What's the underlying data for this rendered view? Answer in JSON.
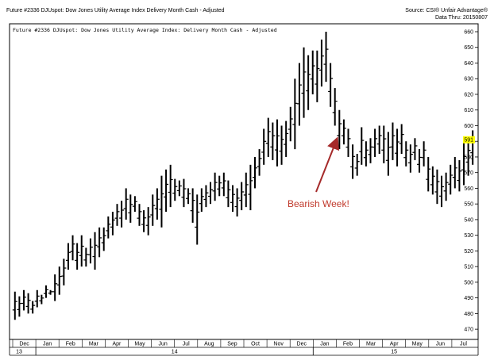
{
  "header": {
    "left_title": "Future #2336 DJUspot: Dow Jones Utility Average Index Delivery Month Cash - Adjusted",
    "source": "Source: CSI® Unfair Advantage®",
    "data_thru": "Data Thru: 20150807"
  },
  "chart_data": {
    "type": "ohlc",
    "title": "Future #2336 DJUspot: Dow Jones Utility Average Index: Delivery Month Cash - Adjusted",
    "ylim": [
      465,
      660
    ],
    "y_ticks": [
      470,
      480,
      490,
      500,
      510,
      520,
      530,
      540,
      550,
      560,
      570,
      580,
      590,
      600,
      610,
      620,
      630,
      640,
      650,
      660
    ],
    "last_price": 591,
    "last_price_color": "#ffff00",
    "months": [
      "Dec",
      "Jan",
      "Feb",
      "Mar",
      "Apr",
      "May",
      "Jun",
      "Jul",
      "Aug",
      "Sep",
      "Oct",
      "Nov",
      "Dec",
      "Jan",
      "Feb",
      "Mar",
      "Apr",
      "May",
      "Jun",
      "Jul"
    ],
    "years": [
      "13",
      "14",
      "15"
    ],
    "annotation": {
      "text": "Bearish Week!",
      "color": "#c0392b"
    },
    "bars": [
      [
        476,
        494
      ],
      [
        478,
        491
      ],
      [
        482,
        495
      ],
      [
        480,
        493
      ],
      [
        480,
        488
      ],
      [
        484,
        495
      ],
      [
        486,
        492
      ],
      [
        490,
        498
      ],
      [
        492,
        495
      ],
      [
        488,
        505
      ],
      [
        492,
        510
      ],
      [
        498,
        515
      ],
      [
        508,
        525
      ],
      [
        514,
        530
      ],
      [
        508,
        525
      ],
      [
        510,
        530
      ],
      [
        510,
        522
      ],
      [
        512,
        528
      ],
      [
        508,
        532
      ],
      [
        516,
        535
      ],
      [
        520,
        535
      ],
      [
        528,
        542
      ],
      [
        530,
        545
      ],
      [
        536,
        550
      ],
      [
        535,
        552
      ],
      [
        540,
        560
      ],
      [
        538,
        556
      ],
      [
        545,
        555
      ],
      [
        536,
        550
      ],
      [
        532,
        546
      ],
      [
        530,
        548
      ],
      [
        536,
        556
      ],
      [
        540,
        560
      ],
      [
        535,
        568
      ],
      [
        545,
        572
      ],
      [
        548,
        575
      ],
      [
        552,
        566
      ],
      [
        555,
        565
      ],
      [
        548,
        566
      ],
      [
        550,
        560
      ],
      [
        538,
        560
      ],
      [
        524,
        556
      ],
      [
        545,
        560
      ],
      [
        548,
        562
      ],
      [
        550,
        564
      ],
      [
        552,
        570
      ],
      [
        555,
        568
      ],
      [
        555,
        570
      ],
      [
        548,
        565
      ],
      [
        545,
        562
      ],
      [
        542,
        560
      ],
      [
        546,
        564
      ],
      [
        548,
        570
      ],
      [
        546,
        575
      ],
      [
        560,
        580
      ],
      [
        568,
        585
      ],
      [
        575,
        598
      ],
      [
        580,
        605
      ],
      [
        578,
        602
      ],
      [
        574,
        604
      ],
      [
        575,
        600
      ],
      [
        580,
        603
      ],
      [
        590,
        612
      ],
      [
        585,
        630
      ],
      [
        600,
        640
      ],
      [
        605,
        650
      ],
      [
        610,
        645
      ],
      [
        620,
        648
      ],
      [
        615,
        648
      ],
      [
        625,
        655
      ],
      [
        628,
        660
      ],
      [
        612,
        640
      ],
      [
        600,
        624
      ],
      [
        585,
        610
      ],
      [
        588,
        604
      ],
      [
        580,
        598
      ],
      [
        566,
        588
      ],
      [
        568,
        582
      ],
      [
        575,
        599
      ],
      [
        574,
        590
      ],
      [
        576,
        592
      ],
      [
        580,
        598
      ],
      [
        582,
        600
      ],
      [
        576,
        600
      ],
      [
        568,
        596
      ],
      [
        578,
        602
      ],
      [
        574,
        598
      ],
      [
        582,
        601
      ],
      [
        574,
        590
      ],
      [
        570,
        588
      ],
      [
        578,
        592
      ],
      [
        570,
        585
      ],
      [
        574,
        590
      ],
      [
        558,
        580
      ],
      [
        556,
        574
      ],
      [
        550,
        572
      ],
      [
        548,
        568
      ],
      [
        552,
        570
      ],
      [
        556,
        575
      ],
      [
        560,
        580
      ],
      [
        558,
        578
      ],
      [
        562,
        590
      ],
      [
        568,
        593
      ],
      [
        575,
        597
      ]
    ]
  }
}
